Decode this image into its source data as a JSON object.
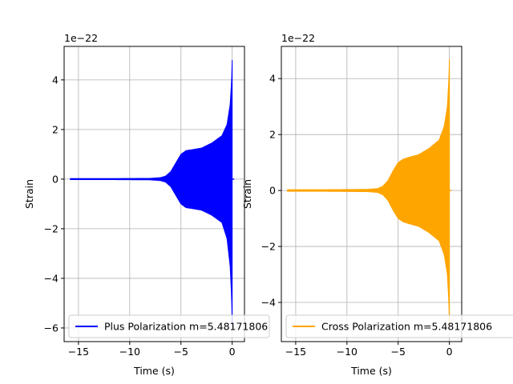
{
  "chart_data": [
    {
      "type": "line",
      "panel": "left",
      "xlabel": "Time (s)",
      "ylabel": "Strain",
      "offset_text": "1e−22",
      "xlim": [
        -16.4,
        1.2
      ],
      "ylim": [
        -6.55,
        5.35
      ],
      "xticks": [
        -15,
        -10,
        -5,
        0
      ],
      "xtick_labels": [
        "−15",
        "−10",
        "−5",
        "0"
      ],
      "yticks": [
        -6,
        -4,
        -2,
        0,
        2,
        4
      ],
      "ytick_labels": [
        "−6",
        "−4",
        "−2",
        "0",
        "2",
        "4"
      ],
      "grid": true,
      "legend_placement": "lower-left",
      "series": [
        {
          "name": "Plus Polarization m=5.48171806",
          "color": "#0000ff",
          "t_start": -15.8,
          "t_end": 0.2,
          "peak_time": 0.0,
          "envelope_upper": [
            [
              -15.8,
              0.02
            ],
            [
              -12,
              0.02
            ],
            [
              -8,
              0.03
            ],
            [
              -7,
              0.06
            ],
            [
              -6.5,
              0.12
            ],
            [
              -6,
              0.3
            ],
            [
              -5.5,
              0.65
            ],
            [
              -5,
              1.0
            ],
            [
              -4.5,
              1.15
            ],
            [
              -4,
              1.18
            ],
            [
              -3,
              1.25
            ],
            [
              -2,
              1.45
            ],
            [
              -1,
              1.75
            ],
            [
              -0.5,
              2.2
            ],
            [
              -0.2,
              3.0
            ],
            [
              -0.05,
              4.0
            ],
            [
              0.0,
              4.8
            ]
          ],
          "envelope_lower": [
            [
              -15.8,
              -0.02
            ],
            [
              -12,
              -0.02
            ],
            [
              -8,
              -0.03
            ],
            [
              -7,
              -0.06
            ],
            [
              -6.5,
              -0.12
            ],
            [
              -6,
              -0.3
            ],
            [
              -5.5,
              -0.65
            ],
            [
              -5,
              -1.0
            ],
            [
              -4.5,
              -1.15
            ],
            [
              -4,
              -1.18
            ],
            [
              -3,
              -1.25
            ],
            [
              -2,
              -1.45
            ],
            [
              -1,
              -1.75
            ],
            [
              -0.5,
              -2.4
            ],
            [
              -0.2,
              -3.5
            ],
            [
              -0.05,
              -4.8
            ],
            [
              0.0,
              -5.9
            ]
          ]
        }
      ]
    },
    {
      "type": "line",
      "panel": "right",
      "xlabel": "Time (s)",
      "ylabel": "Strain",
      "offset_text": "1e−22",
      "xlim": [
        -16.4,
        1.2
      ],
      "ylim": [
        -5.4,
        5.15
      ],
      "xticks": [
        -15,
        -10,
        -5,
        0
      ],
      "xtick_labels": [
        "−15",
        "−10",
        "−5",
        "0"
      ],
      "yticks": [
        -4,
        -2,
        0,
        2,
        4
      ],
      "ytick_labels": [
        "−4",
        "−2",
        "0",
        "2",
        "4"
      ],
      "grid": true,
      "legend_placement": "lower-left",
      "series": [
        {
          "name": "Cross Polarization m=5.48171806",
          "color": "#ffa500",
          "t_start": -15.8,
          "t_end": 0.2,
          "peak_time": 0.0,
          "envelope_upper": [
            [
              -15.8,
              0.03
            ],
            [
              -12,
              0.03
            ],
            [
              -8,
              0.04
            ],
            [
              -7,
              0.07
            ],
            [
              -6.5,
              0.15
            ],
            [
              -6,
              0.35
            ],
            [
              -5.5,
              0.7
            ],
            [
              -5,
              1.0
            ],
            [
              -4.5,
              1.12
            ],
            [
              -4,
              1.18
            ],
            [
              -3,
              1.28
            ],
            [
              -2,
              1.5
            ],
            [
              -1,
              1.8
            ],
            [
              -0.5,
              2.3
            ],
            [
              -0.2,
              3.0
            ],
            [
              -0.05,
              4.0
            ],
            [
              0.0,
              4.7
            ]
          ],
          "envelope_lower": [
            [
              -15.8,
              -0.03
            ],
            [
              -12,
              -0.03
            ],
            [
              -8,
              -0.04
            ],
            [
              -7,
              -0.07
            ],
            [
              -6.5,
              -0.15
            ],
            [
              -6,
              -0.35
            ],
            [
              -5.5,
              -0.7
            ],
            [
              -5,
              -1.0
            ],
            [
              -4.5,
              -1.12
            ],
            [
              -4,
              -1.18
            ],
            [
              -3,
              -1.28
            ],
            [
              -2,
              -1.5
            ],
            [
              -1,
              -1.8
            ],
            [
              -0.5,
              -2.3
            ],
            [
              -0.2,
              -3.0
            ],
            [
              -0.05,
              -4.0
            ],
            [
              0.0,
              -4.9
            ]
          ]
        }
      ]
    }
  ]
}
